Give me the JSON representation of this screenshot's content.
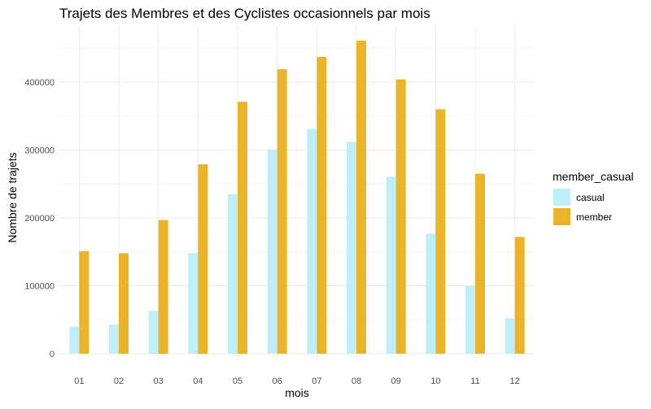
{
  "chart_data": {
    "type": "bar",
    "title": "Trajets des Membres et des Cyclistes occasionnels par mois",
    "xlabel": "mois",
    "ylabel": "Nombre de trajets",
    "categories": [
      "01",
      "02",
      "03",
      "04",
      "05",
      "06",
      "07",
      "08",
      "09",
      "10",
      "11",
      "12"
    ],
    "series": [
      {
        "name": "casual",
        "color": "#bfeefb",
        "values": [
          40000,
          43000,
          63000,
          148000,
          235000,
          301000,
          331000,
          312000,
          261000,
          177000,
          100000,
          52000
        ]
      },
      {
        "name": "member",
        "color": "#ebb328",
        "values": [
          151000,
          148000,
          197000,
          279000,
          371000,
          419000,
          437000,
          461000,
          404000,
          360000,
          265000,
          172000
        ]
      }
    ],
    "yticks": [
      0,
      100000,
      200000,
      300000,
      400000
    ],
    "ylim": [
      0,
      482000
    ],
    "grid": true,
    "legend": {
      "title": "member_casual",
      "position": "right"
    }
  }
}
